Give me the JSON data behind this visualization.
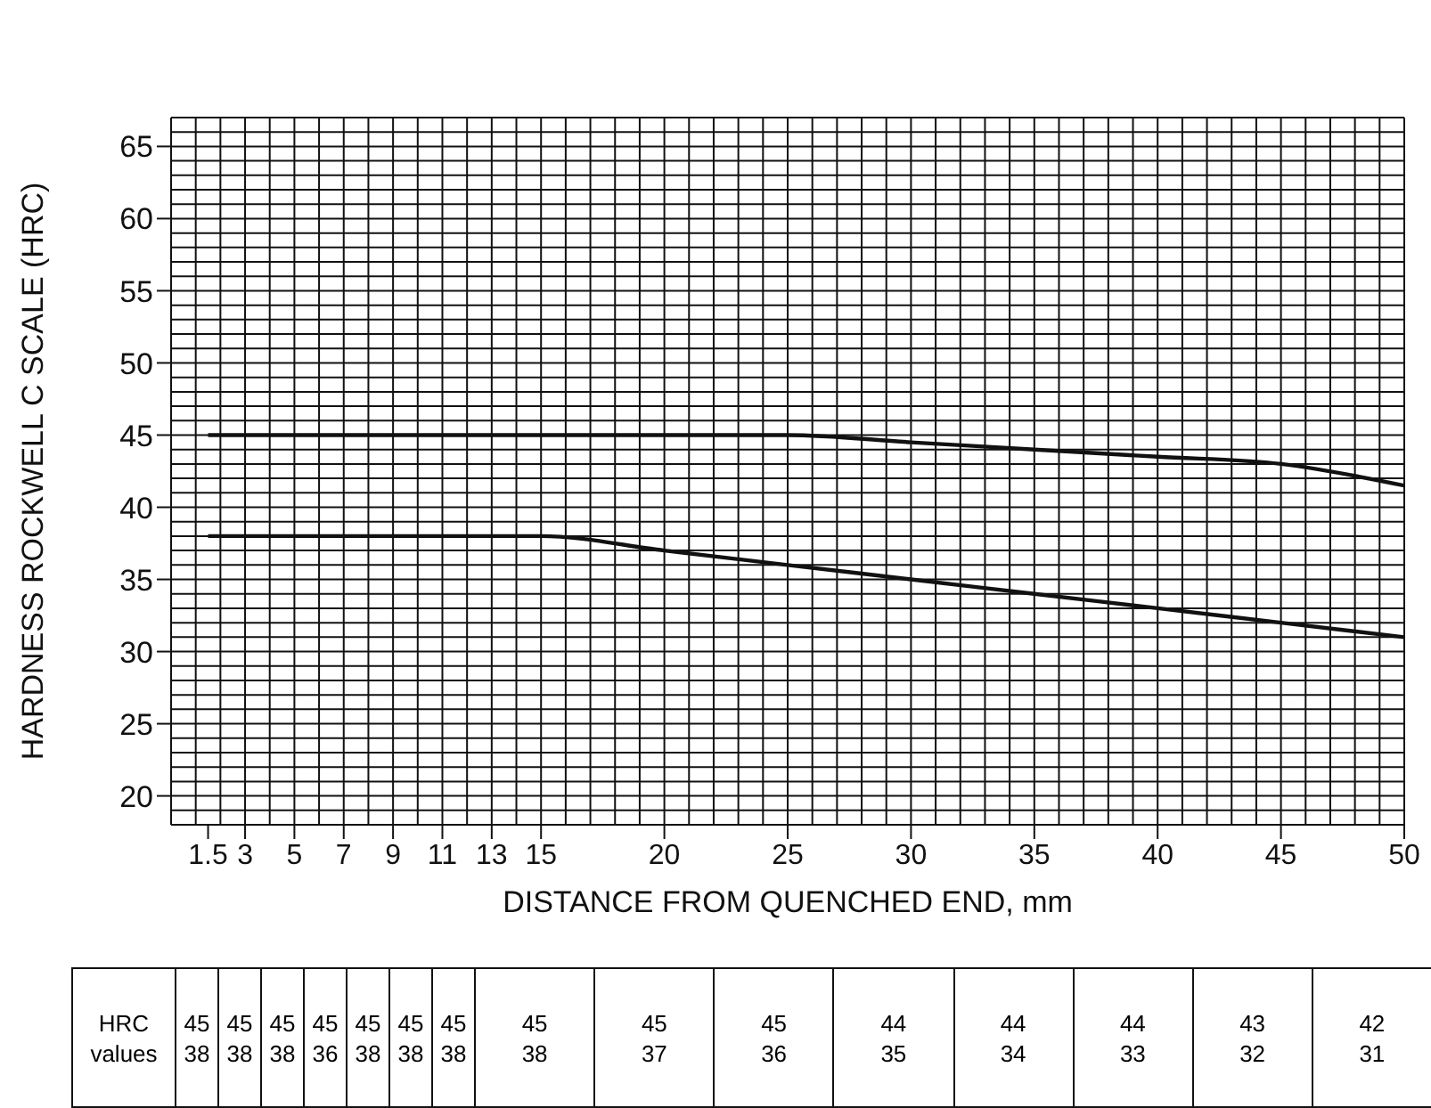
{
  "chart_data": {
    "type": "line",
    "xlabel": "DISTANCE FROM QUENCHED END, mm",
    "ylabel": "HARDNESS ROCKWELL C SCALE (HRC)",
    "x": [
      1.5,
      3,
      5,
      7,
      9,
      11,
      13,
      15,
      20,
      25,
      30,
      35,
      40,
      45,
      50
    ],
    "series": [
      {
        "color": "#111111",
        "values": [
          45,
          45,
          45,
          45,
          45,
          45,
          45,
          45,
          45,
          45,
          44.5,
          44,
          43.5,
          43,
          41.5
        ]
      },
      {
        "color": "#111111",
        "values": [
          38,
          38,
          38,
          38,
          38,
          38,
          38,
          38,
          37,
          36,
          35,
          34,
          33,
          32,
          31
        ]
      }
    ],
    "xlim": [
      0,
      50
    ],
    "xticks": [
      1.5,
      3,
      5,
      7,
      9,
      11,
      13,
      15,
      20,
      25,
      30,
      35,
      40,
      45,
      50
    ],
    "ylim": [
      18,
      67
    ],
    "yticks": [
      20,
      25,
      30,
      35,
      40,
      45,
      50,
      55,
      60,
      65
    ],
    "grid": true,
    "marker": "none",
    "line_style": "solid",
    "legend": false,
    "annotations": [
      "HRC values",
      "45 38",
      "45 38",
      "45 38",
      "45 36",
      "45 38",
      "45 38",
      "45 38",
      "45 38",
      "45 37",
      "45 36",
      "44 35",
      "44 34",
      "44 33",
      "43 32",
      "42 31"
    ]
  }
}
